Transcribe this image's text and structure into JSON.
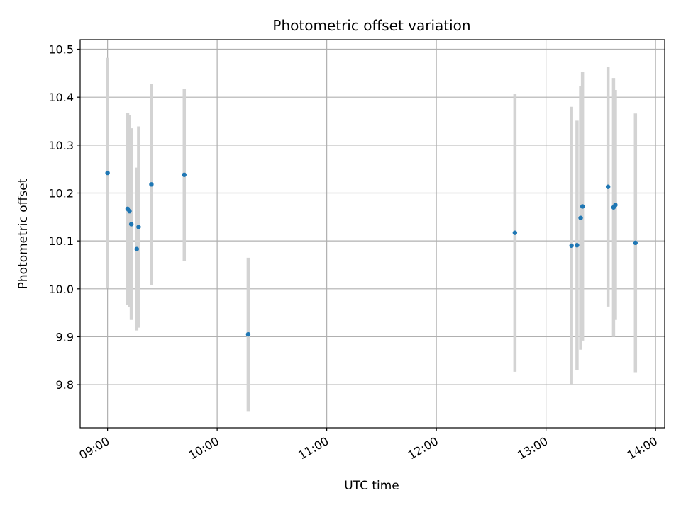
{
  "chart_data": {
    "type": "scatter",
    "title": "Photometric offset variation",
    "xlabel": "UTC time",
    "ylabel": "Photometric offset",
    "xlim": [
      "08:45",
      "14:05"
    ],
    "ylim": [
      9.71,
      10.52
    ],
    "grid": true,
    "x_ticks": [
      "09:00",
      "10:00",
      "11:00",
      "12:00",
      "13:00",
      "14:00"
    ],
    "y_ticks": [
      9.8,
      9.9,
      10.0,
      10.1,
      10.2,
      10.3,
      10.4,
      10.5
    ],
    "colors": {
      "points": "#1f77b4",
      "error_bars": "#d3d3d3",
      "grid": "#b0b0b0"
    },
    "series": [
      {
        "points": [
          {
            "x": "09:00",
            "y": 10.242,
            "err": 0.24
          },
          {
            "x": "09:11",
            "y": 10.167,
            "err": 0.2
          },
          {
            "x": "09:12",
            "y": 10.162,
            "err": 0.2
          },
          {
            "x": "09:13",
            "y": 10.135,
            "err": 0.2
          },
          {
            "x": "09:16",
            "y": 10.083,
            "err": 0.17
          },
          {
            "x": "09:17",
            "y": 10.129,
            "err": 0.21
          },
          {
            "x": "09:24",
            "y": 10.218,
            "err": 0.21
          },
          {
            "x": "09:42",
            "y": 10.238,
            "err": 0.18
          },
          {
            "x": "10:17",
            "y": 9.905,
            "err": 0.16
          },
          {
            "x": "12:43",
            "y": 10.117,
            "err": 0.29
          },
          {
            "x": "13:14",
            "y": 10.09,
            "err": 0.29
          },
          {
            "x": "13:17",
            "y": 10.091,
            "err": 0.26
          },
          {
            "x": "13:19",
            "y": 10.148,
            "err": 0.275
          },
          {
            "x": "13:20",
            "y": 10.172,
            "err": 0.28
          },
          {
            "x": "13:34",
            "y": 10.213,
            "err": 0.25
          },
          {
            "x": "13:37",
            "y": 10.17,
            "err": 0.27
          },
          {
            "x": "13:38",
            "y": 10.175,
            "err": 0.24
          },
          {
            "x": "13:49",
            "y": 10.096,
            "err": 0.27
          }
        ]
      }
    ]
  }
}
